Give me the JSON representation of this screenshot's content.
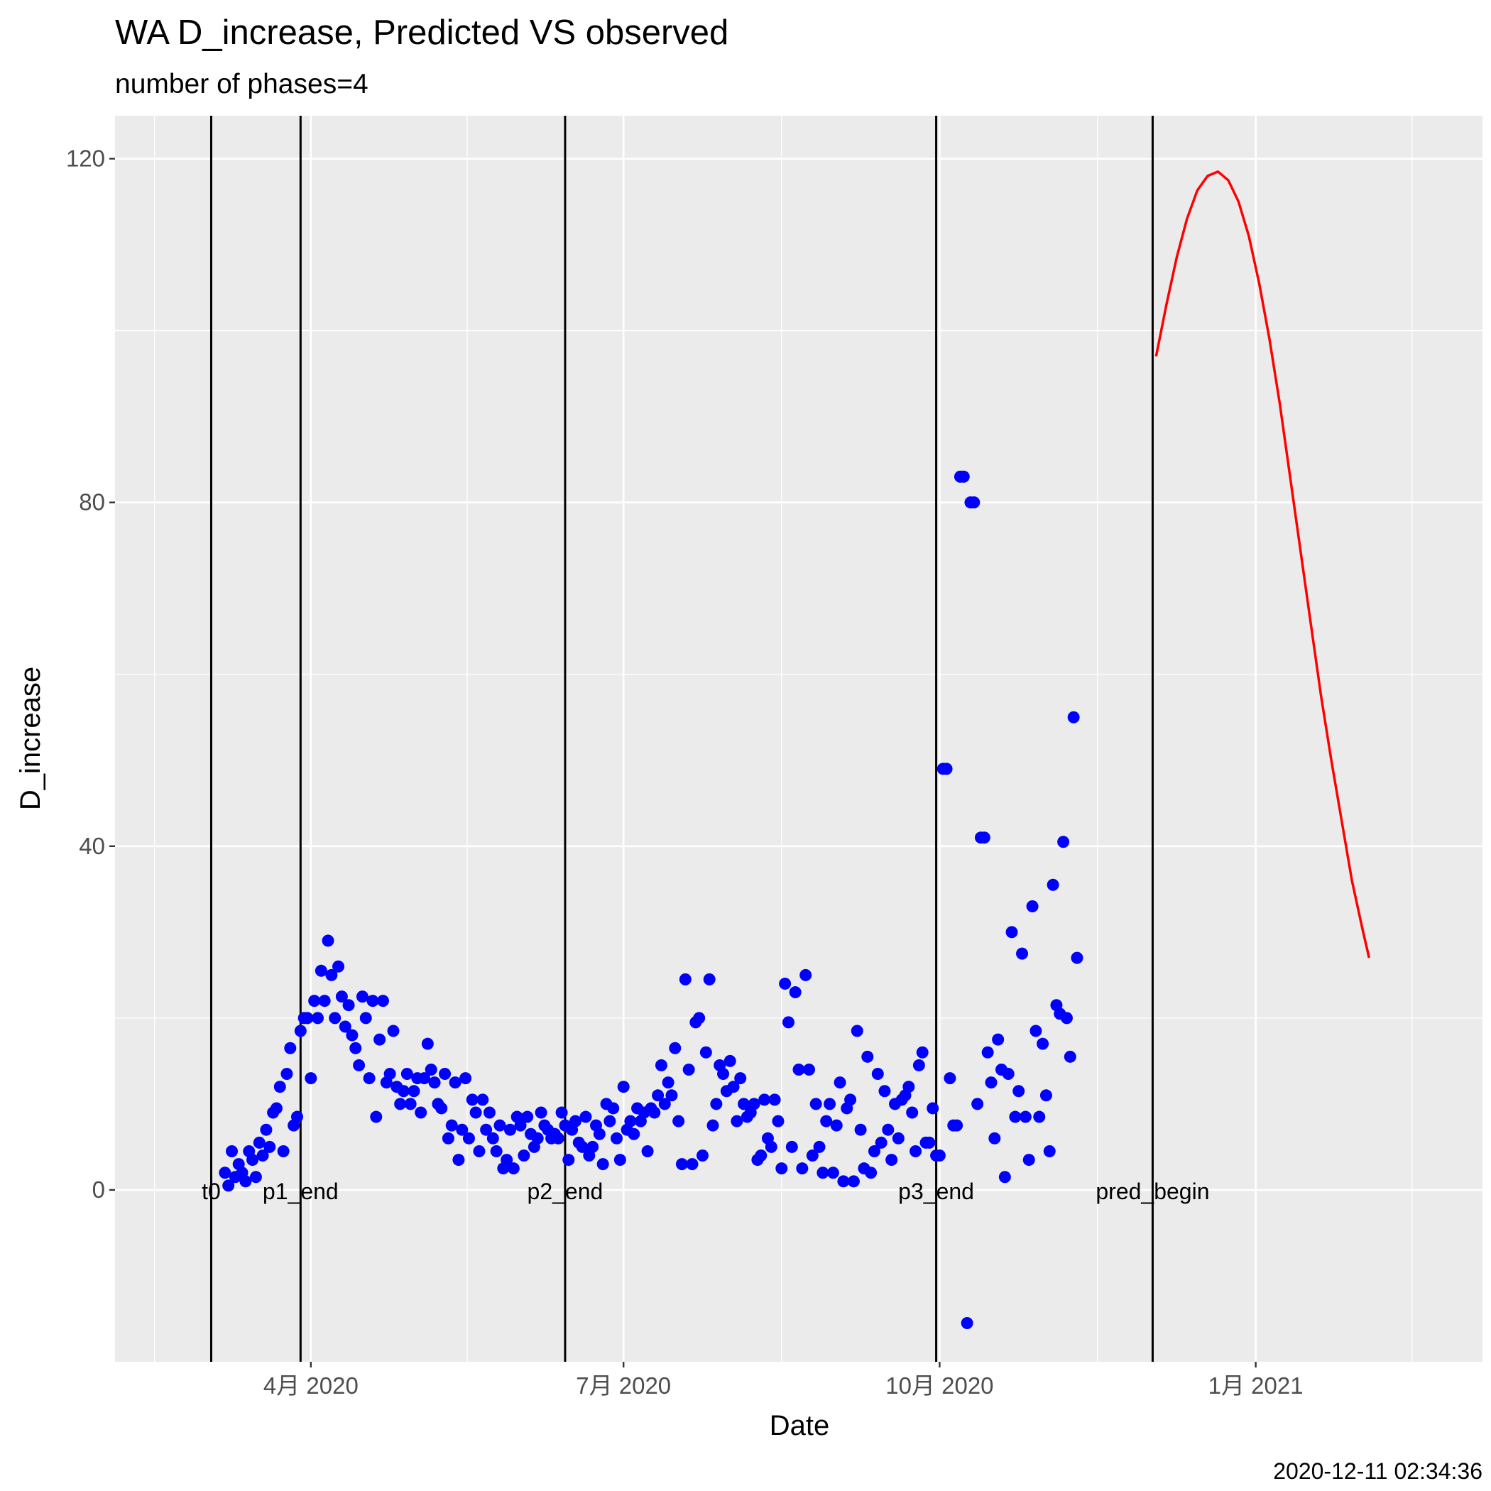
{
  "chart_data": {
    "type": "scatter",
    "title": "WA D_increase, Predicted VS observed",
    "subtitle": "number of phases=4",
    "xlabel": "Date",
    "ylabel": "D_increase",
    "x_tick_labels": [
      "4月 2020",
      "7月 2020",
      "10月 2020",
      "1月 2021"
    ],
    "x_tick_dates": [
      "2020-04-01",
      "2020-07-01",
      "2020-10-01",
      "2021-01-01"
    ],
    "y_ticks": [
      0,
      40,
      80,
      120
    ],
    "xlim": [
      "2020-02-04",
      "2021-03-08"
    ],
    "ylim": [
      -20,
      125
    ],
    "grid": true,
    "footer": "2020-12-11 02:34:36",
    "vertical_lines": [
      {
        "label": "t0",
        "date": "2020-03-03"
      },
      {
        "label": "p1_end",
        "date": "2020-03-29"
      },
      {
        "label": "p2_end",
        "date": "2020-06-14"
      },
      {
        "label": "p3_end",
        "date": "2020-09-30"
      },
      {
        "label": "pred_begin",
        "date": "2020-12-02"
      }
    ],
    "series": [
      {
        "kind": "observed",
        "color": "#0000ff",
        "points": [
          [
            "2020-03-07",
            2
          ],
          [
            "2020-03-08",
            0.5
          ],
          [
            "2020-03-09",
            4.5
          ],
          [
            "2020-03-10",
            1.5
          ],
          [
            "2020-03-11",
            3
          ],
          [
            "2020-03-12",
            2
          ],
          [
            "2020-03-13",
            1
          ],
          [
            "2020-03-14",
            4.5
          ],
          [
            "2020-03-15",
            3.5
          ],
          [
            "2020-03-16",
            1.5
          ],
          [
            "2020-03-17",
            5.5
          ],
          [
            "2020-03-18",
            4
          ],
          [
            "2020-03-19",
            7
          ],
          [
            "2020-03-20",
            5
          ],
          [
            "2020-03-21",
            9
          ],
          [
            "2020-03-22",
            9.5
          ],
          [
            "2020-03-23",
            12
          ],
          [
            "2020-03-24",
            4.5
          ],
          [
            "2020-03-25",
            13.5
          ],
          [
            "2020-03-26",
            16.5
          ],
          [
            "2020-03-27",
            7.5
          ],
          [
            "2020-03-28",
            8.5
          ],
          [
            "2020-03-29",
            18.5
          ],
          [
            "2020-03-30",
            20
          ],
          [
            "2020-03-31",
            20
          ],
          [
            "2020-04-01",
            13
          ],
          [
            "2020-04-02",
            22
          ],
          [
            "2020-04-03",
            20
          ],
          [
            "2020-04-04",
            25.5
          ],
          [
            "2020-04-05",
            22
          ],
          [
            "2020-04-06",
            29
          ],
          [
            "2020-04-07",
            25
          ],
          [
            "2020-04-08",
            20
          ],
          [
            "2020-04-09",
            26
          ],
          [
            "2020-04-10",
            22.5
          ],
          [
            "2020-04-11",
            19
          ],
          [
            "2020-04-12",
            21.5
          ],
          [
            "2020-04-13",
            18
          ],
          [
            "2020-04-14",
            16.5
          ],
          [
            "2020-04-15",
            14.5
          ],
          [
            "2020-04-16",
            22.5
          ],
          [
            "2020-04-17",
            20
          ],
          [
            "2020-04-18",
            13
          ],
          [
            "2020-04-19",
            22
          ],
          [
            "2020-04-20",
            8.5
          ],
          [
            "2020-04-21",
            17.5
          ],
          [
            "2020-04-22",
            22
          ],
          [
            "2020-04-23",
            12.5
          ],
          [
            "2020-04-24",
            13.5
          ],
          [
            "2020-04-25",
            18.5
          ],
          [
            "2020-04-26",
            12
          ],
          [
            "2020-04-27",
            10
          ],
          [
            "2020-04-28",
            11.5
          ],
          [
            "2020-04-29",
            13.5
          ],
          [
            "2020-04-30",
            10
          ],
          [
            "2020-05-01",
            11.5
          ],
          [
            "2020-05-02",
            13
          ],
          [
            "2020-05-03",
            9
          ],
          [
            "2020-05-04",
            13
          ],
          [
            "2020-05-05",
            17
          ],
          [
            "2020-05-06",
            14
          ],
          [
            "2020-05-07",
            12.5
          ],
          [
            "2020-05-08",
            10
          ],
          [
            "2020-05-09",
            9.5
          ],
          [
            "2020-05-10",
            13.5
          ],
          [
            "2020-05-11",
            6
          ],
          [
            "2020-05-12",
            7.5
          ],
          [
            "2020-05-13",
            12.5
          ],
          [
            "2020-05-14",
            3.5
          ],
          [
            "2020-05-15",
            7
          ],
          [
            "2020-05-16",
            13
          ],
          [
            "2020-05-17",
            6
          ],
          [
            "2020-05-18",
            10.5
          ],
          [
            "2020-05-19",
            9
          ],
          [
            "2020-05-20",
            4.5
          ],
          [
            "2020-05-21",
            10.5
          ],
          [
            "2020-05-22",
            7
          ],
          [
            "2020-05-23",
            9
          ],
          [
            "2020-05-24",
            6
          ],
          [
            "2020-05-25",
            4.5
          ],
          [
            "2020-05-26",
            7.5
          ],
          [
            "2020-05-27",
            2.5
          ],
          [
            "2020-05-28",
            3.5
          ],
          [
            "2020-05-29",
            7
          ],
          [
            "2020-05-30",
            2.5
          ],
          [
            "2020-05-31",
            8.5
          ],
          [
            "2020-06-01",
            7.5
          ],
          [
            "2020-06-02",
            4
          ],
          [
            "2020-06-03",
            8.5
          ],
          [
            "2020-06-04",
            6.5
          ],
          [
            "2020-06-05",
            5
          ],
          [
            "2020-06-06",
            6
          ],
          [
            "2020-06-07",
            9
          ],
          [
            "2020-06-08",
            7.5
          ],
          [
            "2020-06-09",
            7
          ],
          [
            "2020-06-10",
            6
          ],
          [
            "2020-06-11",
            6.5
          ],
          [
            "2020-06-12",
            6
          ],
          [
            "2020-06-13",
            9
          ],
          [
            "2020-06-14",
            7.5
          ],
          [
            "2020-06-15",
            3.5
          ],
          [
            "2020-06-16",
            7
          ],
          [
            "2020-06-17",
            8
          ],
          [
            "2020-06-18",
            5.5
          ],
          [
            "2020-06-19",
            5
          ],
          [
            "2020-06-20",
            8.5
          ],
          [
            "2020-06-21",
            4
          ],
          [
            "2020-06-22",
            5
          ],
          [
            "2020-06-23",
            7.5
          ],
          [
            "2020-06-24",
            6.5
          ],
          [
            "2020-06-25",
            3
          ],
          [
            "2020-06-26",
            10
          ],
          [
            "2020-06-27",
            8
          ],
          [
            "2020-06-28",
            9.5
          ],
          [
            "2020-06-29",
            6
          ],
          [
            "2020-06-30",
            3.5
          ],
          [
            "2020-07-01",
            12
          ],
          [
            "2020-07-02",
            7
          ],
          [
            "2020-07-03",
            8
          ],
          [
            "2020-07-04",
            6.5
          ],
          [
            "2020-07-05",
            9.5
          ],
          [
            "2020-07-06",
            8
          ],
          [
            "2020-07-07",
            9
          ],
          [
            "2020-07-08",
            4.5
          ],
          [
            "2020-07-09",
            9.5
          ],
          [
            "2020-07-10",
            9
          ],
          [
            "2020-07-11",
            11
          ],
          [
            "2020-07-12",
            14.5
          ],
          [
            "2020-07-13",
            10
          ],
          [
            "2020-07-14",
            12.5
          ],
          [
            "2020-07-15",
            11
          ],
          [
            "2020-07-16",
            16.5
          ],
          [
            "2020-07-17",
            8
          ],
          [
            "2020-07-18",
            3
          ],
          [
            "2020-07-19",
            24.5
          ],
          [
            "2020-07-20",
            14
          ],
          [
            "2020-07-21",
            3
          ],
          [
            "2020-07-22",
            19.5
          ],
          [
            "2020-07-23",
            20
          ],
          [
            "2020-07-24",
            4
          ],
          [
            "2020-07-25",
            16
          ],
          [
            "2020-07-26",
            24.5
          ],
          [
            "2020-07-27",
            7.5
          ],
          [
            "2020-07-28",
            10
          ],
          [
            "2020-07-29",
            14.5
          ],
          [
            "2020-07-30",
            13.5
          ],
          [
            "2020-07-31",
            11.5
          ],
          [
            "2020-08-01",
            15
          ],
          [
            "2020-08-02",
            12
          ],
          [
            "2020-08-03",
            8
          ],
          [
            "2020-08-04",
            13
          ],
          [
            "2020-08-05",
            10
          ],
          [
            "2020-08-06",
            8.5
          ],
          [
            "2020-08-07",
            9
          ],
          [
            "2020-08-08",
            10
          ],
          [
            "2020-08-09",
            3.5
          ],
          [
            "2020-08-10",
            4
          ],
          [
            "2020-08-11",
            10.5
          ],
          [
            "2020-08-12",
            6
          ],
          [
            "2020-08-13",
            5
          ],
          [
            "2020-08-14",
            10.5
          ],
          [
            "2020-08-15",
            8
          ],
          [
            "2020-08-16",
            2.5
          ],
          [
            "2020-08-17",
            24
          ],
          [
            "2020-08-18",
            19.5
          ],
          [
            "2020-08-19",
            5
          ],
          [
            "2020-08-20",
            23
          ],
          [
            "2020-08-21",
            14
          ],
          [
            "2020-08-22",
            2.5
          ],
          [
            "2020-08-23",
            25
          ],
          [
            "2020-08-24",
            14
          ],
          [
            "2020-08-25",
            4
          ],
          [
            "2020-08-26",
            10
          ],
          [
            "2020-08-27",
            5
          ],
          [
            "2020-08-28",
            2
          ],
          [
            "2020-08-29",
            8
          ],
          [
            "2020-08-30",
            10
          ],
          [
            "2020-08-31",
            2
          ],
          [
            "2020-09-01",
            7.5
          ],
          [
            "2020-09-02",
            12.5
          ],
          [
            "2020-09-03",
            1
          ],
          [
            "2020-09-04",
            9.5
          ],
          [
            "2020-09-05",
            10.5
          ],
          [
            "2020-09-06",
            1
          ],
          [
            "2020-09-07",
            18.5
          ],
          [
            "2020-09-08",
            7
          ],
          [
            "2020-09-09",
            2.5
          ],
          [
            "2020-09-10",
            15.5
          ],
          [
            "2020-09-11",
            2
          ],
          [
            "2020-09-12",
            4.5
          ],
          [
            "2020-09-13",
            13.5
          ],
          [
            "2020-09-14",
            5.5
          ],
          [
            "2020-09-15",
            11.5
          ],
          [
            "2020-09-16",
            7
          ],
          [
            "2020-09-17",
            3.5
          ],
          [
            "2020-09-18",
            10
          ],
          [
            "2020-09-19",
            6
          ],
          [
            "2020-09-20",
            10.5
          ],
          [
            "2020-09-21",
            11
          ],
          [
            "2020-09-22",
            12
          ],
          [
            "2020-09-23",
            9
          ],
          [
            "2020-09-24",
            4.5
          ],
          [
            "2020-09-25",
            14.5
          ],
          [
            "2020-09-26",
            16
          ],
          [
            "2020-09-27",
            5.5
          ],
          [
            "2020-09-28",
            5.5
          ],
          [
            "2020-09-29",
            9.5
          ],
          [
            "2020-09-30",
            4
          ],
          [
            "2020-10-01",
            4
          ],
          [
            "2020-10-02",
            49
          ],
          [
            "2020-10-03",
            49
          ],
          [
            "2020-10-04",
            13
          ],
          [
            "2020-10-05",
            7.5
          ],
          [
            "2020-10-06",
            7.5
          ],
          [
            "2020-10-07",
            83
          ],
          [
            "2020-10-08",
            83
          ],
          [
            "2020-10-09",
            -15.5
          ],
          [
            "2020-10-10",
            80
          ],
          [
            "2020-10-11",
            80
          ],
          [
            "2020-10-12",
            10
          ],
          [
            "2020-10-13",
            41
          ],
          [
            "2020-10-14",
            41
          ],
          [
            "2020-10-15",
            16
          ],
          [
            "2020-10-16",
            12.5
          ],
          [
            "2020-10-17",
            6
          ],
          [
            "2020-10-18",
            17.5
          ],
          [
            "2020-10-19",
            14
          ],
          [
            "2020-10-20",
            1.5
          ],
          [
            "2020-10-21",
            13.5
          ],
          [
            "2020-10-22",
            30
          ],
          [
            "2020-10-23",
            8.5
          ],
          [
            "2020-10-24",
            11.5
          ],
          [
            "2020-10-25",
            27.5
          ],
          [
            "2020-10-26",
            8.5
          ],
          [
            "2020-10-27",
            3.5
          ],
          [
            "2020-10-28",
            33
          ],
          [
            "2020-10-29",
            18.5
          ],
          [
            "2020-10-30",
            8.5
          ],
          [
            "2020-10-31",
            17
          ],
          [
            "2020-11-01",
            11
          ],
          [
            "2020-11-02",
            4.5
          ],
          [
            "2020-11-03",
            35.5
          ],
          [
            "2020-11-04",
            21.5
          ],
          [
            "2020-11-05",
            20.5
          ],
          [
            "2020-11-06",
            40.5
          ],
          [
            "2020-11-07",
            20
          ],
          [
            "2020-11-08",
            15.5
          ],
          [
            "2020-11-09",
            55
          ],
          [
            "2020-11-10",
            27
          ]
        ]
      },
      {
        "kind": "predicted",
        "color": "#ff0000",
        "points": [
          [
            "2020-12-03",
            97
          ],
          [
            "2020-12-06",
            103
          ],
          [
            "2020-12-09",
            108.5
          ],
          [
            "2020-12-12",
            113
          ],
          [
            "2020-12-15",
            116.3
          ],
          [
            "2020-12-18",
            118
          ],
          [
            "2020-12-21",
            118.5
          ],
          [
            "2020-12-24",
            117.5
          ],
          [
            "2020-12-27",
            115
          ],
          [
            "2020-12-30",
            111
          ],
          [
            "2021-01-02",
            105.5
          ],
          [
            "2021-01-05",
            99
          ],
          [
            "2021-01-08",
            91.5
          ],
          [
            "2021-01-11",
            83
          ],
          [
            "2021-01-14",
            74.5
          ],
          [
            "2021-01-17",
            66
          ],
          [
            "2021-01-20",
            57.5
          ],
          [
            "2021-01-23",
            50
          ],
          [
            "2021-01-26",
            43
          ],
          [
            "2021-01-29",
            36
          ],
          [
            "2021-02-01",
            30.5
          ],
          [
            "2021-02-03",
            27
          ]
        ]
      }
    ]
  }
}
